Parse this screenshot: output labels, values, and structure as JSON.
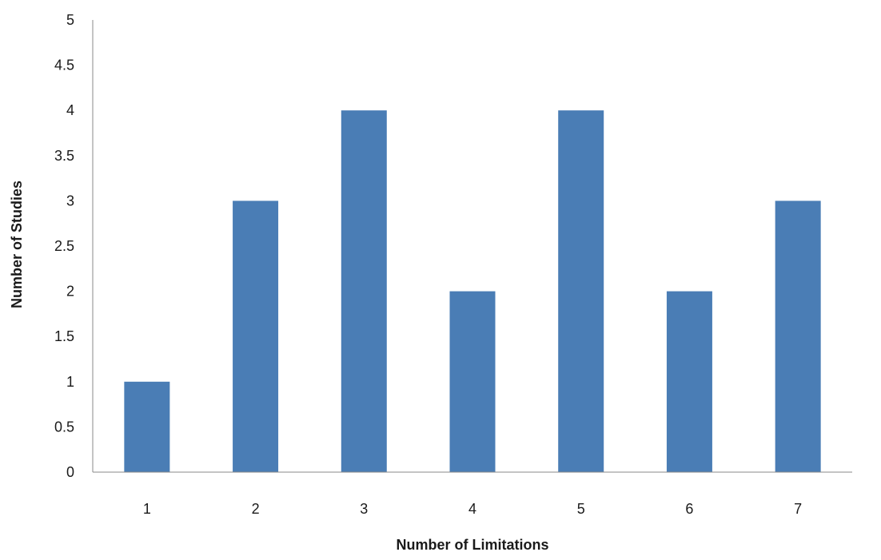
{
  "chart_data": {
    "type": "bar",
    "title": "",
    "xlabel": "Number of Limitations",
    "ylabel": "Number of Studies",
    "categories": [
      "1",
      "2",
      "3",
      "4",
      "5",
      "6",
      "7"
    ],
    "values": [
      1,
      3,
      4,
      2,
      4,
      2,
      3
    ],
    "ylim": [
      0,
      5
    ],
    "ytick_step": 0.5,
    "yticks": [
      "0",
      "0.5",
      "1",
      "1.5",
      "2",
      "2.5",
      "3",
      "3.5",
      "4",
      "4.5",
      "5"
    ],
    "grid": false,
    "legend": "none",
    "colors": {
      "bar": "#4a7db5",
      "axis": "#888888"
    }
  }
}
